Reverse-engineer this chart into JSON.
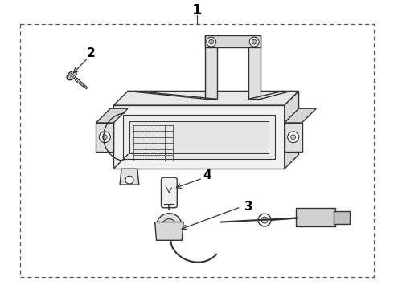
{
  "title": "1",
  "label_2": "2",
  "label_3": "3",
  "label_4": "4",
  "bg_color": "#ffffff",
  "border_color": "#555555",
  "line_color": "#333333",
  "text_color": "#000000",
  "border_lw": 0.8,
  "part_lw": 1.0,
  "fig_width": 4.9,
  "fig_height": 3.6,
  "dpi": 100
}
